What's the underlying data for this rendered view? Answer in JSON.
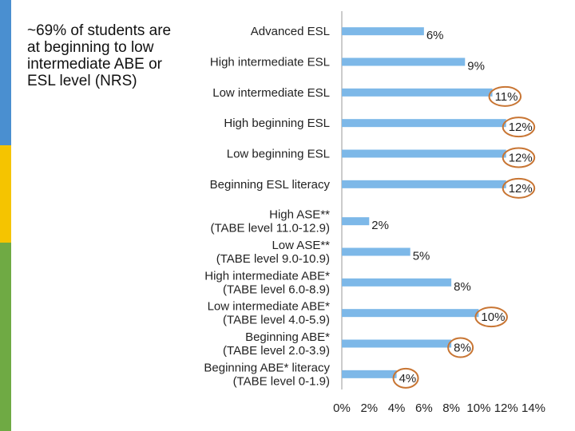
{
  "caption": "~69% of students are at beginning to low intermediate ABE or ESL level (NRS)",
  "colors": {
    "bar": "#7db8e8",
    "highlight_circle": "#c87533",
    "axis": "#999999"
  },
  "chart_data": {
    "type": "bar",
    "orientation": "horizontal",
    "categories": [
      "Advanced ESL",
      "High intermediate ESL",
      "Low intermediate ESL",
      "High beginning ESL",
      "Low beginning ESL",
      "Beginning ESL literacy",
      "High ASE** (TABE level 11.0-12.9)",
      "Low ASE** (TABE level 9.0-10.9)",
      "High intermediate ABE* (TABE level 6.0-8.9)",
      "Low intermediate ABE* (TABE level 4.0-5.9)",
      "Beginning ABE* (TABE level 2.0-3.9)",
      "Beginning ABE* literacy (TABE level 0-1.9)"
    ],
    "category_lines": [
      [
        "Advanced ESL"
      ],
      [
        "High intermediate ESL"
      ],
      [
        "Low intermediate ESL"
      ],
      [
        "High beginning ESL"
      ],
      [
        "Low beginning ESL"
      ],
      [
        "Beginning ESL literacy"
      ],
      [
        "High ASE**",
        "(TABE level 11.0-12.9)"
      ],
      [
        "Low ASE**",
        "(TABE level 9.0-10.9)"
      ],
      [
        "High intermediate ABE*",
        "(TABE level 6.0-8.9)"
      ],
      [
        "Low intermediate ABE*",
        "(TABE level 4.0-5.9)"
      ],
      [
        "Beginning ABE*",
        "(TABE level 2.0-3.9)"
      ],
      [
        "Beginning ABE* literacy",
        "(TABE level 0-1.9)"
      ]
    ],
    "values": [
      6,
      9,
      11,
      12,
      12,
      12,
      2,
      5,
      8,
      10,
      8,
      4
    ],
    "data_labels": [
      "6%",
      "9%",
      "11%",
      "12%",
      "12%",
      "12%",
      "2%",
      "5%",
      "8%",
      "10%",
      "8%",
      "4%"
    ],
    "highlighted": [
      false,
      false,
      true,
      true,
      true,
      true,
      false,
      false,
      false,
      true,
      true,
      true
    ],
    "xlim": [
      0,
      14
    ],
    "x_ticks": [
      "0%",
      "2%",
      "4%",
      "6%",
      "8%",
      "10%",
      "12%",
      "14%"
    ],
    "grid": false,
    "legend": "none"
  }
}
